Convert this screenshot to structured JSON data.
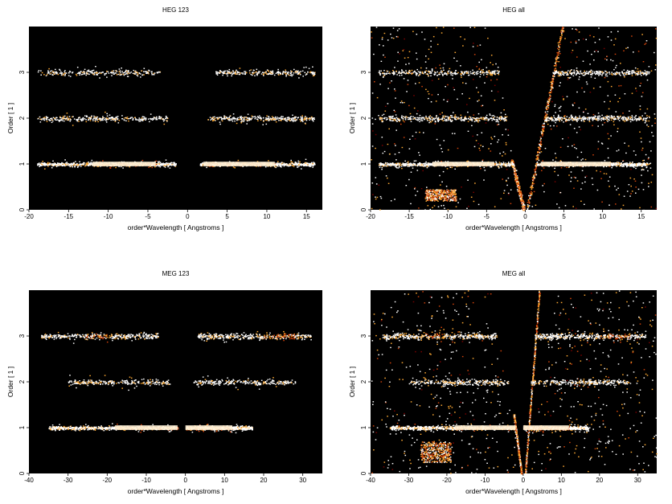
{
  "chart_data": [
    {
      "type": "heatmap",
      "title": "HEG 123",
      "xlabel": "order*Wavelength [ Angstroms ]",
      "ylabel": "Order [ 1 ]",
      "xlim": [
        -20,
        17
      ],
      "ylim": [
        0,
        4
      ],
      "xticks": [
        "-20",
        "-15",
        "-10",
        "-5",
        "0",
        "5",
        "10",
        "15"
      ],
      "yticks": [
        "0",
        "1",
        "2",
        "3"
      ],
      "background": "#000000",
      "colormap": [
        "#7a0000",
        "#d2430a",
        "#ffaa33",
        "#ffffff"
      ],
      "bands": [
        {
          "order": 1,
          "x": [
            -19,
            -1.5
          ],
          "density": 0.9,
          "bright_x": [
            -12,
            -4
          ]
        },
        {
          "order": 1,
          "x": [
            1.5,
            16
          ],
          "density": 0.9,
          "bright_x": [
            2,
            11
          ]
        },
        {
          "order": 2,
          "x": [
            -19,
            -2.5
          ],
          "density": 0.45
        },
        {
          "order": 2,
          "x": [
            2.5,
            16
          ],
          "density": 0.45
        },
        {
          "order": 3,
          "x": [
            -19,
            -3.5
          ],
          "density": 0.35
        },
        {
          "order": 3,
          "x": [
            3.5,
            16
          ],
          "density": 0.35
        }
      ],
      "background_noise": 0
    },
    {
      "type": "heatmap",
      "title": "HEG all",
      "xlabel": "order*Wavelength [ Angstroms ]",
      "ylabel": "Order [ 1 ]",
      "xlim": [
        -20,
        17
      ],
      "ylim": [
        0,
        4
      ],
      "xticks": [
        "-20",
        "-15",
        "-10",
        "-5",
        "0",
        "5",
        "10",
        "15"
      ],
      "yticks": [
        "0",
        "1",
        "2",
        "3"
      ],
      "background": "#000000",
      "colormap": [
        "#7a0000",
        "#d2430a",
        "#ffaa33",
        "#ffffff"
      ],
      "bands": [
        {
          "order": 1,
          "x": [
            -19,
            -1.5
          ],
          "density": 0.9,
          "bright_x": [
            -12,
            -4
          ]
        },
        {
          "order": 1,
          "x": [
            1.5,
            16
          ],
          "density": 0.9,
          "bright_x": [
            2,
            11
          ]
        },
        {
          "order": 2,
          "x": [
            -19,
            -2.5
          ],
          "density": 0.5
        },
        {
          "order": 2,
          "x": [
            2.5,
            16
          ],
          "density": 0.5
        },
        {
          "order": 3,
          "x": [
            -19,
            -3.5
          ],
          "density": 0.4
        },
        {
          "order": 3,
          "x": [
            3.5,
            16
          ],
          "density": 0.4
        }
      ],
      "background_noise": 0.3,
      "wedge_x0": 0,
      "streaks": [
        {
          "x1": 0.2,
          "y1": 0,
          "x2": 4.8,
          "y2": 4
        },
        {
          "x1": -0.2,
          "y1": 0,
          "x2": -1.8,
          "y2": 1.1
        }
      ],
      "lower_blob": {
        "x": [
          -13,
          -9
        ],
        "y": [
          0.2,
          0.45
        ]
      }
    },
    {
      "type": "heatmap",
      "title": "MEG 123",
      "xlabel": "order*Wavelength [ Angstroms ]",
      "ylabel": "Order [ 1 ]",
      "xlim": [
        -40,
        35
      ],
      "ylim": [
        0,
        4
      ],
      "xticks": [
        "-40",
        "-30",
        "-20",
        "-10",
        "0",
        "10",
        "20",
        "30"
      ],
      "yticks": [
        "0",
        "1",
        "2",
        "3"
      ],
      "background": "#000000",
      "colormap": [
        "#7a0000",
        "#d2430a",
        "#ffaa33",
        "#ffffff"
      ],
      "bands": [
        {
          "order": 1,
          "x": [
            -35,
            -2
          ],
          "density": 0.85,
          "bright_x": [
            -18,
            -2
          ]
        },
        {
          "order": 1,
          "x": [
            0,
            17
          ],
          "density": 0.85,
          "bright_x": [
            0,
            12
          ]
        },
        {
          "order": 2,
          "x": [
            -30,
            -4
          ],
          "density": 0.35
        },
        {
          "order": 2,
          "x": [
            2,
            28
          ],
          "density": 0.35
        },
        {
          "order": 3,
          "x": [
            -37,
            -7
          ],
          "density": 0.55,
          "bright_x": [
            -26,
            -20
          ]
        },
        {
          "order": 3,
          "x": [
            3,
            32
          ],
          "density": 0.55,
          "bright_x": [
            20,
            28
          ]
        }
      ],
      "background_noise": 0
    },
    {
      "type": "heatmap",
      "title": "MEG all",
      "xlabel": "order*Wavelength [ Angstroms ]",
      "ylabel": "Order [ 1 ]",
      "xlim": [
        -40,
        35
      ],
      "ylim": [
        0,
        4
      ],
      "xticks": [
        "-40",
        "-30",
        "-20",
        "-10",
        "0",
        "10",
        "20",
        "30"
      ],
      "yticks": [
        "0",
        "1",
        "2",
        "3"
      ],
      "background": "#000000",
      "colormap": [
        "#7a0000",
        "#d2430a",
        "#ffaa33",
        "#ffffff"
      ],
      "bands": [
        {
          "order": 1,
          "x": [
            -35,
            -2
          ],
          "density": 0.85,
          "bright_x": [
            -18,
            -2
          ]
        },
        {
          "order": 1,
          "x": [
            0,
            17
          ],
          "density": 0.85,
          "bright_x": [
            0,
            12
          ]
        },
        {
          "order": 2,
          "x": [
            -30,
            -4
          ],
          "density": 0.4
        },
        {
          "order": 2,
          "x": [
            2,
            28
          ],
          "density": 0.4
        },
        {
          "order": 3,
          "x": [
            -37,
            -7
          ],
          "density": 0.6,
          "bright_x": [
            -26,
            -20
          ]
        },
        {
          "order": 3,
          "x": [
            3,
            32
          ],
          "density": 0.6,
          "bright_x": [
            20,
            28
          ]
        }
      ],
      "background_noise": 0.3,
      "wedge_x0": 0,
      "streaks": [
        {
          "x1": 0.5,
          "y1": 0,
          "x2": 4.2,
          "y2": 4
        },
        {
          "x1": -0.5,
          "y1": 0,
          "x2": -2.5,
          "y2": 1.3
        }
      ],
      "lower_blob": {
        "x": [
          -27,
          -19
        ],
        "y": [
          0.25,
          0.7
        ]
      }
    }
  ]
}
